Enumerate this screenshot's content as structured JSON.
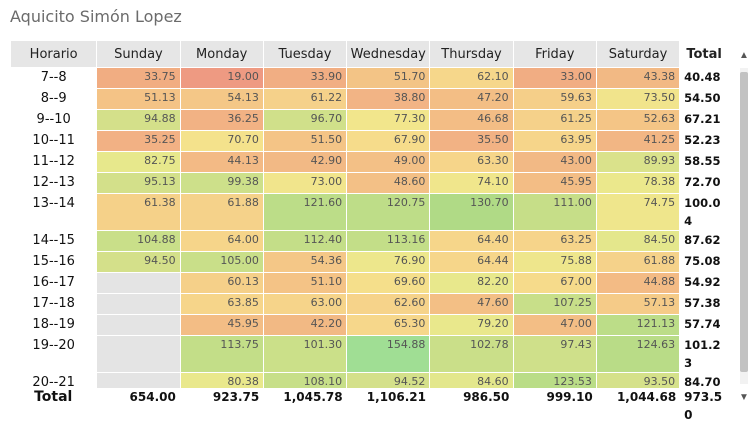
{
  "title": "Aquicito Simón Lopez",
  "table": {
    "corner_label": "Horario",
    "days": [
      "Sunday",
      "Monday",
      "Tuesday",
      "Wednesday",
      "Thursday",
      "Friday",
      "Saturday"
    ],
    "total_header": "Total",
    "rows": [
      {
        "label": "7--8",
        "values": [
          "33.75",
          "19.00",
          "33.90",
          "51.70",
          "62.10",
          "33.00",
          "43.38"
        ],
        "colors": [
          "#f1ad82",
          "#ee9a82",
          "#f1ae83",
          "#f3c486",
          "#f6d78b",
          "#f1ad83",
          "#f2b984"
        ],
        "total": "40.48",
        "tall": false
      },
      {
        "label": "8--9",
        "values": [
          "51.13",
          "54.13",
          "61.22",
          "38.80",
          "47.20",
          "59.63",
          "73.50"
        ],
        "colors": [
          "#f4c386",
          "#f4c787",
          "#f5d18a",
          "#f2b485",
          "#f3be85",
          "#f5cf89",
          "#f1e48c"
        ],
        "total": "54.50",
        "tall": false
      },
      {
        "label": "9--10",
        "values": [
          "94.88",
          "36.25",
          "96.70",
          "77.30",
          "46.68",
          "61.25",
          "52.63"
        ],
        "colors": [
          "#d4e08a",
          "#f2b284",
          "#d0e08a",
          "#f2e68c",
          "#f3bd85",
          "#f5d18a",
          "#f4c586"
        ],
        "total": "67.21",
        "tall": false
      },
      {
        "label": "10--11",
        "values": [
          "35.25",
          "70.70",
          "51.50",
          "67.90",
          "35.50",
          "63.95",
          "41.25"
        ],
        "colors": [
          "#f2b184",
          "#f4e28c",
          "#f4c486",
          "#f6dc8b",
          "#f2b284",
          "#f6d58a",
          "#f2b684"
        ],
        "total": "52.23",
        "tall": false
      },
      {
        "label": "11--12",
        "values": [
          "82.75",
          "44.13",
          "42.90",
          "49.00",
          "63.30",
          "43.00",
          "89.93"
        ],
        "colors": [
          "#e7e88c",
          "#f3ba85",
          "#f2b985",
          "#f3c086",
          "#f6d58a",
          "#f2b985",
          "#dae28b"
        ],
        "total": "58.55",
        "tall": false
      },
      {
        "label": "12--13",
        "values": [
          "95.13",
          "99.38",
          "73.00",
          "48.60",
          "74.10",
          "45.95",
          "78.38"
        ],
        "colors": [
          "#d3e08a",
          "#cde08a",
          "#f1e58c",
          "#f3c086",
          "#f0e68c",
          "#f3bd85",
          "#ebe88c"
        ],
        "total": "72.70",
        "tall": false
      },
      {
        "label": "13--14",
        "values": [
          "61.38",
          "61.88",
          "121.60",
          "120.75",
          "130.70",
          "111.00",
          "74.75"
        ],
        "colors": [
          "#f5d189",
          "#f5d28a",
          "#bcdd88",
          "#bedd88",
          "#b0da86",
          "#c6de88",
          "#efe68c"
        ],
        "total": "100.04",
        "tall": true
      },
      {
        "label": "14--15",
        "values": [
          "104.88",
          "64.00",
          "112.40",
          "113.16",
          "64.40",
          "63.25",
          "84.50"
        ],
        "colors": [
          "#c9df89",
          "#f6d58a",
          "#c4de88",
          "#c3de88",
          "#f6d68a",
          "#f6d48a",
          "#e4e78c"
        ],
        "total": "87.62",
        "tall": false
      },
      {
        "label": "15--16",
        "values": [
          "94.50",
          "105.00",
          "54.36",
          "76.90",
          "64.44",
          "75.88",
          "61.88"
        ],
        "colors": [
          "#d4e08a",
          "#c9df89",
          "#f4c787",
          "#ede78c",
          "#f6d68a",
          "#eee68c",
          "#f5d28a"
        ],
        "total": "75.08",
        "tall": false
      },
      {
        "label": "16--17",
        "values": [
          "",
          "60.13",
          "51.10",
          "69.60",
          "82.20",
          "67.00",
          "44.88"
        ],
        "colors": [
          "#e4e4e4",
          "#f5d089",
          "#f4c386",
          "#f5df8b",
          "#e8e88c",
          "#f6db8b",
          "#f3bb85"
        ],
        "total": "54.92",
        "tall": false
      },
      {
        "label": "17--18",
        "values": [
          "",
          "63.85",
          "63.00",
          "62.60",
          "47.60",
          "107.25",
          "57.13"
        ],
        "colors": [
          "#e4e4e4",
          "#f6d58a",
          "#f6d48a",
          "#f6d38a",
          "#f3bf85",
          "#c8df89",
          "#f5cb88"
        ],
        "total": "57.38",
        "tall": false
      },
      {
        "label": "18--19",
        "values": [
          "",
          "45.95",
          "42.20",
          "65.30",
          "79.20",
          "47.00",
          "121.13"
        ],
        "colors": [
          "#e4e4e4",
          "#f3bd85",
          "#f2b984",
          "#f6d78b",
          "#e9e88c",
          "#f3be85",
          "#bcdd88"
        ],
        "total": "57.74",
        "tall": false
      },
      {
        "label": "19--20",
        "values": [
          "",
          "113.75",
          "101.30",
          "154.88",
          "102.78",
          "97.43",
          "124.63"
        ],
        "colors": [
          "#e4e4e4",
          "#c3de88",
          "#cbe089",
          "#a0de94",
          "#cadf89",
          "#cfe08a",
          "#b9dc87"
        ],
        "total": "101.23",
        "tall": true
      },
      {
        "label": "20--21",
        "values": [
          "",
          "80.38",
          "108.10",
          "94.52",
          "84.60",
          "123.53",
          "93.50"
        ],
        "colors": [
          "#e4e4e4",
          "#e9e88c",
          "#c7df89",
          "#d4e08a",
          "#e3e78c",
          "#badd87",
          "#d5e18a"
        ],
        "total": "84.70",
        "tall": false
      }
    ]
  },
  "footer": {
    "label": "Total",
    "values": [
      "654.00",
      "923.75",
      "1,045.78",
      "1,106.21",
      "986.50",
      "999.10",
      "1,044.68"
    ],
    "total": "973.50"
  },
  "scrollbar": {
    "up_icon": "▲",
    "down_icon": "▼"
  }
}
